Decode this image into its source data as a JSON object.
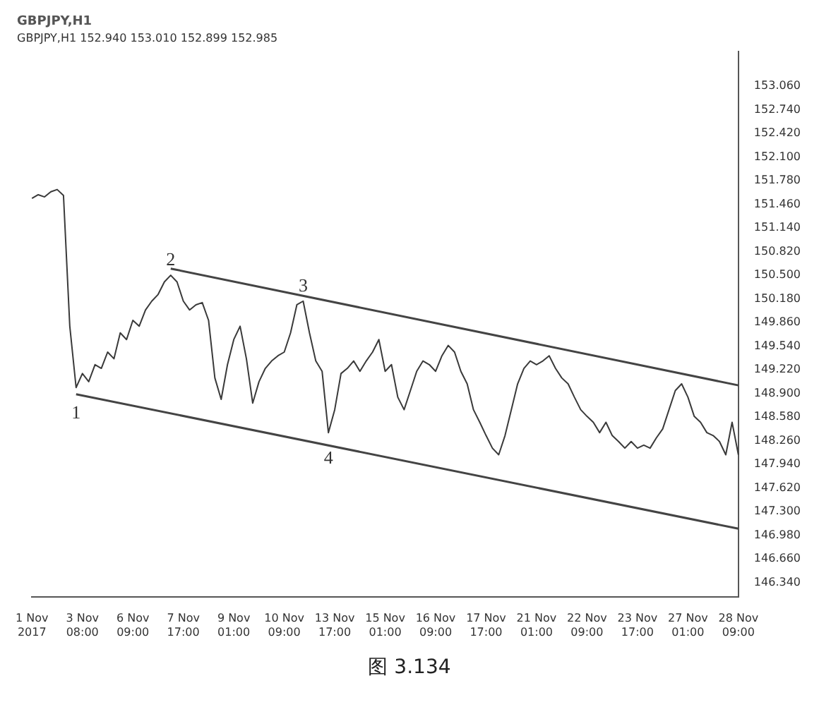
{
  "chart_data": {
    "type": "line",
    "title": "GBPJPY,H1",
    "subtitle": "GBPJPY,H1 152.940 153.010 152.899 152.985",
    "categories": [
      "1 Nov 2017",
      null,
      null,
      null,
      null,
      null,
      null,
      null,
      "3 Nov 08:00",
      null,
      null,
      null,
      null,
      null,
      null,
      null,
      "6 Nov 09:00",
      null,
      null,
      null,
      null,
      null,
      null,
      null,
      "7 Nov 17:00",
      null,
      null,
      null,
      null,
      null,
      null,
      null,
      "9 Nov 01:00",
      null,
      null,
      null,
      null,
      null,
      null,
      null,
      "10 Nov 09:00",
      null,
      null,
      null,
      null,
      null,
      null,
      null,
      "13 Nov 17:00",
      null,
      null,
      null,
      null,
      null,
      null,
      null,
      "15 Nov 01:00",
      null,
      null,
      null,
      null,
      null,
      null,
      null,
      "16 Nov 09:00",
      null,
      null,
      null,
      null,
      null,
      null,
      null,
      "17 Nov 17:00",
      null,
      null,
      null,
      null,
      null,
      null,
      null,
      "21 Nov 01:00",
      null,
      null,
      null,
      null,
      null,
      null,
      null,
      "22 Nov 09:00",
      null,
      null,
      null,
      null,
      null,
      null,
      null,
      "23 Nov 17:00",
      null,
      null,
      null,
      null,
      null,
      null,
      null,
      "27 Nov 01:00",
      null,
      null,
      null,
      null,
      null,
      null,
      null,
      "28 Nov 09:00"
    ],
    "series": [
      {
        "type": "line",
        "color": "#3a3a3a",
        "values": [
          151.54,
          151.59,
          151.56,
          151.63,
          151.66,
          151.58,
          149.81,
          148.98,
          149.17,
          149.06,
          149.29,
          149.24,
          149.46,
          149.37,
          149.72,
          149.63,
          149.89,
          149.81,
          150.03,
          150.15,
          150.24,
          150.41,
          150.5,
          150.41,
          150.15,
          150.03,
          150.1,
          150.13,
          149.89,
          149.11,
          148.82,
          149.29,
          149.63,
          149.81,
          149.37,
          148.77,
          149.06,
          149.24,
          149.34,
          149.41,
          149.46,
          149.72,
          150.1,
          150.15,
          149.72,
          149.34,
          149.2,
          148.37,
          148.68,
          149.17,
          149.24,
          149.34,
          149.2,
          149.34,
          149.46,
          149.63,
          149.2,
          149.29,
          148.85,
          148.68,
          148.94,
          149.2,
          149.34,
          149.29,
          149.2,
          149.41,
          149.55,
          149.46,
          149.2,
          149.03,
          148.68,
          148.51,
          148.33,
          148.16,
          148.07,
          148.33,
          148.68,
          149.03,
          149.24,
          149.34,
          149.29,
          149.34,
          149.41,
          149.24,
          149.11,
          149.03,
          148.85,
          148.68,
          148.59,
          148.51,
          148.37,
          148.51,
          148.33,
          148.25,
          148.16,
          148.25,
          148.16,
          148.2,
          148.16,
          148.3,
          148.42,
          148.68,
          148.94,
          149.03,
          148.85,
          148.59,
          148.51,
          148.37,
          148.33,
          148.25,
          148.07,
          148.51,
          148.07
        ]
      },
      {
        "type": "line",
        "color": "#444444",
        "values": [
          null,
          null,
          null,
          null,
          null,
          null,
          null,
          null,
          null,
          null,
          null,
          null,
          null,
          null,
          null,
          null,
          null,
          null,
          null,
          null,
          null,
          null,
          150.59,
          null,
          null,
          null,
          null,
          null,
          null,
          null,
          null,
          null,
          null,
          null,
          null,
          null,
          null,
          null,
          null,
          null,
          null,
          null,
          null,
          null,
          null,
          null,
          null,
          null,
          null,
          null,
          null,
          null,
          null,
          null,
          null,
          null,
          null,
          null,
          null,
          null,
          null,
          null,
          null,
          null,
          null,
          null,
          null,
          null,
          null,
          null,
          null,
          null,
          null,
          null,
          null,
          null,
          null,
          null,
          null,
          null,
          null,
          null,
          null,
          null,
          null,
          null,
          null,
          null,
          null,
          null,
          null,
          null,
          null,
          null,
          null,
          null,
          null,
          null,
          null,
          null,
          null,
          null,
          null,
          null,
          null,
          null,
          null,
          null,
          null,
          null,
          null,
          null,
          149.01
        ]
      },
      {
        "type": "line",
        "color": "#444444",
        "values": [
          null,
          null,
          null,
          null,
          null,
          null,
          null,
          148.89,
          null,
          null,
          null,
          null,
          null,
          null,
          null,
          null,
          null,
          null,
          null,
          null,
          null,
          null,
          null,
          null,
          null,
          null,
          null,
          null,
          null,
          null,
          null,
          null,
          null,
          null,
          null,
          null,
          null,
          null,
          null,
          null,
          null,
          null,
          null,
          null,
          null,
          null,
          null,
          null,
          null,
          null,
          null,
          null,
          null,
          null,
          null,
          null,
          null,
          null,
          null,
          null,
          null,
          null,
          null,
          null,
          null,
          null,
          null,
          null,
          null,
          null,
          null,
          null,
          null,
          null,
          null,
          null,
          null,
          null,
          null,
          null,
          null,
          null,
          null,
          null,
          null,
          null,
          null,
          null,
          null,
          null,
          null,
          null,
          null,
          null,
          null,
          null,
          null,
          null,
          null,
          null,
          null,
          null,
          null,
          null,
          null,
          null,
          null,
          null,
          null,
          null,
          null,
          null,
          147.07
        ]
      }
    ],
    "ylim": [
      146.15,
      153.53
    ],
    "yticks": [
      {
        "value": 146.34,
        "label": "146.340"
      },
      {
        "value": 146.66,
        "label": "146.660"
      },
      {
        "value": 146.98,
        "label": "146.980"
      },
      {
        "value": 147.3,
        "label": "147.300"
      },
      {
        "value": 147.62,
        "label": "147.620"
      },
      {
        "value": 147.94,
        "label": "147.940"
      },
      {
        "value": 148.26,
        "label": "148.260"
      },
      {
        "value": 148.58,
        "label": "148.580"
      },
      {
        "value": 148.9,
        "label": "148.900"
      },
      {
        "value": 149.22,
        "label": "149.220"
      },
      {
        "value": 149.54,
        "label": "149.540"
      },
      {
        "value": 149.86,
        "label": "149.860"
      },
      {
        "value": 150.18,
        "label": "150.180"
      },
      {
        "value": 150.5,
        "label": "150.500"
      },
      {
        "value": 150.82,
        "label": "150.820"
      },
      {
        "value": 151.14,
        "label": "151.140"
      },
      {
        "value": 151.46,
        "label": "151.460"
      },
      {
        "value": 151.78,
        "label": "151.780"
      },
      {
        "value": 152.1,
        "label": "152.100"
      },
      {
        "value": 152.42,
        "label": "152.420"
      },
      {
        "value": 152.74,
        "label": "152.740"
      },
      {
        "value": 153.06,
        "label": "153.060"
      }
    ],
    "grid": false,
    "legend": false,
    "annotations": [
      {
        "text": "1",
        "y": 148.98
      },
      {
        "text": "2",
        "y": 150.5
      },
      {
        "text": "3",
        "y": 150.15
      },
      {
        "text": "4",
        "y": 148.37
      },
      "图 3.134"
    ]
  }
}
